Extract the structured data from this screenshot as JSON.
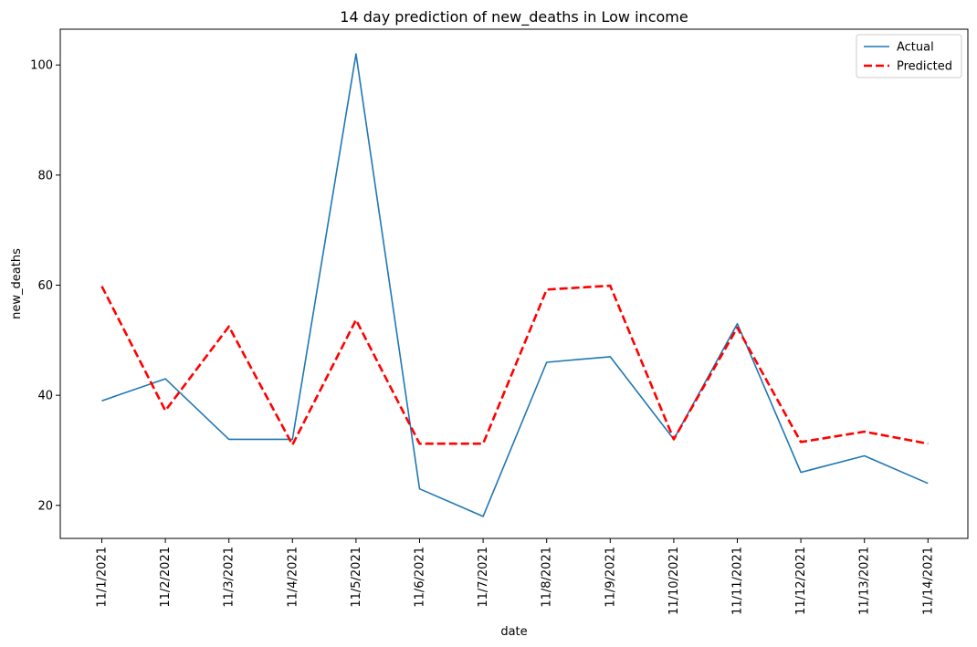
{
  "chart_data": {
    "type": "line",
    "title": "14 day prediction of new_deaths in Low income",
    "xlabel": "date",
    "ylabel": "new_deaths",
    "ylim": [
      14,
      106.5
    ],
    "y_ticks": [
      20,
      40,
      60,
      80,
      100
    ],
    "grid": false,
    "legend_position": "top-right",
    "categories": [
      "11/1/2021",
      "11/2/2021",
      "11/3/2021",
      "11/4/2021",
      "11/5/2021",
      "11/6/2021",
      "11/7/2021",
      "11/8/2021",
      "11/9/2021",
      "11/10/2021",
      "11/11/2021",
      "11/12/2021",
      "11/13/2021",
      "11/14/2021"
    ],
    "series": [
      {
        "name": "Actual",
        "color": "#1f77b4",
        "style": "solid",
        "values": [
          39,
          43,
          32,
          32,
          102,
          23,
          18,
          46,
          47,
          32,
          53,
          26,
          29,
          24
        ]
      },
      {
        "name": "Predicted",
        "color": "#ff0000",
        "style": "dashed",
        "values": [
          59.8,
          37.2,
          52.5,
          31.0,
          53.7,
          31.2,
          31.2,
          59.2,
          59.9,
          32.0,
          52.3,
          31.5,
          33.4,
          31.2
        ]
      }
    ]
  }
}
